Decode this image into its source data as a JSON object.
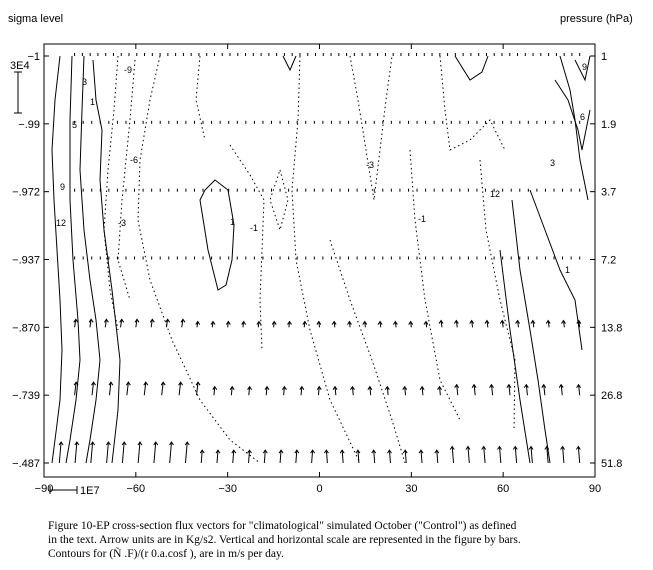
{
  "chart_data": {
    "type": "vector-contour",
    "left_axis_title": "sigma level",
    "right_axis_title": "pressure (hPa)",
    "x_ticks": [
      -90,
      -60,
      -30,
      0,
      30,
      60,
      90
    ],
    "x_tick_labels": [
      "−90",
      "−60",
      "−30",
      "0",
      "30",
      "60",
      "90"
    ],
    "xlim": [
      -90,
      90
    ],
    "left_ticks": [
      "−1",
      "−.99",
      "−.972",
      "−.937",
      "−.870",
      "−.739",
      "−.487"
    ],
    "right_ticks": [
      "1",
      "1.9",
      "3.7",
      "7.2",
      "13.8",
      "26.8",
      "51.8"
    ],
    "n_levels": 7,
    "vertical_scale_label": "3E4",
    "horizontal_scale_label": "1E7",
    "contour_labels": [
      "-9",
      "3",
      "1",
      "5",
      "9",
      "12",
      "-6",
      "-3",
      "1",
      "-1",
      "-3",
      "-1",
      "12",
      "9",
      "6",
      "3",
      "1"
    ],
    "arrow_rows": [
      {
        "level": 0,
        "lon_range": [
          -80,
          85
        ],
        "n": 66,
        "u": 0.0,
        "v": 0.0
      },
      {
        "level": 1,
        "lon_range": [
          -80,
          85
        ],
        "n": 60,
        "u": 0.0,
        "v": 0.0
      },
      {
        "level": 2,
        "lon_range": [
          -80,
          85
        ],
        "n": 60,
        "u": 0.0,
        "v": 0.0
      },
      {
        "level": 3,
        "lon_range": [
          -80,
          85
        ],
        "n": 60,
        "u": 0.0,
        "v": 0.0
      },
      {
        "level": 4,
        "lon_range": [
          -80,
          85
        ],
        "n": 34,
        "u": 0.4,
        "v": 0.5
      },
      {
        "level": 5,
        "lon_range": [
          -80,
          85
        ],
        "n": 30,
        "u": 0.5,
        "v": 1.0
      },
      {
        "level": 6,
        "lon_range": [
          -85,
          85
        ],
        "n": 34,
        "u": 0.6,
        "v": 1.8
      }
    ]
  },
  "caption": {
    "line1": "Figure 10-EP cross-section flux vectors for \"climatological\" simulated October (\"Control\") as defined",
    "line2": "in the text. Arrow units are in Kg/s2. Vertical and horizontal scale are represented in the figure by bars.",
    "line3": "Contours for (Ñ .F)/(r 0.a.cosf ), are in m/s per day."
  }
}
